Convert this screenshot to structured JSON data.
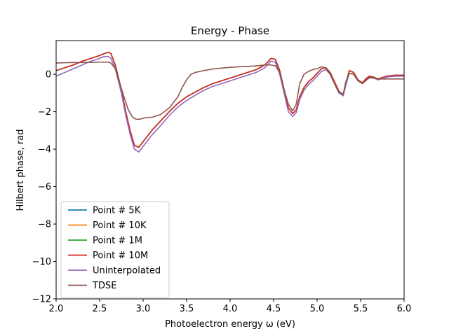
{
  "chart_data": {
    "type": "line",
    "title": "Energy - Phase",
    "xlabel": "Photoelectron energy ω (eV)",
    "ylabel": "Hilbert phase, rad",
    "xlim": [
      2.0,
      6.0
    ],
    "ylim": [
      -12,
      1.8
    ],
    "xticks": [
      2.0,
      2.5,
      3.0,
      3.5,
      4.0,
      4.5,
      5.0,
      5.5,
      6.0
    ],
    "xtick_labels": [
      "2.0",
      "2.5",
      "3.0",
      "3.5",
      "4.0",
      "4.5",
      "5.0",
      "5.5",
      "6.0"
    ],
    "yticks": [
      0,
      -2,
      -4,
      -6,
      -8,
      -10,
      -12
    ],
    "ytick_labels": [
      "0",
      "−2",
      "−4",
      "−6",
      "−8",
      "−10",
      "−12"
    ],
    "grid": false,
    "legend_position": "lower-left",
    "series": [
      {
        "name": "Point # 5K",
        "color": "#1f77b4",
        "x": [
          2.0,
          2.1,
          2.2,
          2.3,
          2.4,
          2.5,
          2.55,
          2.6,
          2.63,
          2.68,
          2.75,
          2.8,
          2.85,
          2.9,
          2.95,
          3.0,
          3.1,
          3.2,
          3.3,
          3.4,
          3.5,
          3.6,
          3.7,
          3.8,
          3.9,
          4.0,
          4.1,
          4.2,
          4.3,
          4.4,
          4.47,
          4.52,
          4.57,
          4.62,
          4.67,
          4.72,
          4.76,
          4.8,
          4.85,
          4.9,
          4.95,
          5.0,
          5.05,
          5.1,
          5.15,
          5.2,
          5.25,
          5.3,
          5.33,
          5.37,
          5.42,
          5.47,
          5.52,
          5.57,
          5.6,
          5.65,
          5.7,
          5.8,
          5.9,
          6.0
        ],
        "y": [
          0.2,
          0.35,
          0.5,
          0.7,
          0.85,
          1.0,
          1.1,
          1.18,
          1.1,
          0.5,
          -0.8,
          -2.0,
          -3.0,
          -3.8,
          -3.9,
          -3.6,
          -3.0,
          -2.5,
          -2.0,
          -1.55,
          -1.2,
          -0.95,
          -0.7,
          -0.5,
          -0.35,
          -0.2,
          -0.05,
          0.1,
          0.25,
          0.5,
          0.85,
          0.8,
          0.2,
          -0.8,
          -1.8,
          -2.1,
          -1.9,
          -1.2,
          -0.7,
          -0.4,
          -0.2,
          0.05,
          0.3,
          0.35,
          0.1,
          -0.4,
          -0.9,
          -1.1,
          -0.5,
          0.2,
          0.1,
          -0.3,
          -0.45,
          -0.2,
          -0.1,
          -0.15,
          -0.25,
          -0.1,
          -0.05,
          -0.05
        ]
      },
      {
        "name": "Point # 10K",
        "color": "#ff7f0e",
        "x": [
          2.0,
          2.1,
          2.2,
          2.3,
          2.4,
          2.5,
          2.55,
          2.6,
          2.63,
          2.68,
          2.75,
          2.8,
          2.85,
          2.9,
          2.95,
          3.0,
          3.1,
          3.2,
          3.3,
          3.4,
          3.5,
          3.6,
          3.7,
          3.8,
          3.9,
          4.0,
          4.1,
          4.2,
          4.3,
          4.4,
          4.47,
          4.52,
          4.57,
          4.62,
          4.67,
          4.72,
          4.76,
          4.8,
          4.85,
          4.9,
          4.95,
          5.0,
          5.05,
          5.1,
          5.15,
          5.2,
          5.25,
          5.3,
          5.33,
          5.37,
          5.42,
          5.47,
          5.52,
          5.57,
          5.6,
          5.65,
          5.7,
          5.8,
          5.9,
          6.0
        ],
        "y": [
          0.2,
          0.35,
          0.5,
          0.7,
          0.85,
          1.0,
          1.1,
          1.18,
          1.1,
          0.5,
          -0.8,
          -2.0,
          -3.0,
          -3.8,
          -3.9,
          -3.6,
          -3.0,
          -2.5,
          -2.0,
          -1.55,
          -1.2,
          -0.95,
          -0.7,
          -0.5,
          -0.35,
          -0.2,
          -0.05,
          0.1,
          0.25,
          0.5,
          0.85,
          0.8,
          0.2,
          -0.8,
          -1.8,
          -2.1,
          -1.9,
          -1.2,
          -0.7,
          -0.4,
          -0.2,
          0.05,
          0.3,
          0.35,
          0.1,
          -0.4,
          -0.9,
          -1.1,
          -0.5,
          0.2,
          0.1,
          -0.3,
          -0.45,
          -0.2,
          -0.1,
          -0.15,
          -0.25,
          -0.1,
          -0.05,
          -0.05
        ]
      },
      {
        "name": "Point # 1M",
        "color": "#2ca02c",
        "x": [
          2.0,
          2.1,
          2.2,
          2.3,
          2.4,
          2.5,
          2.55,
          2.6,
          2.63,
          2.68,
          2.75,
          2.8,
          2.85,
          2.9,
          2.95,
          3.0,
          3.1,
          3.2,
          3.3,
          3.4,
          3.5,
          3.6,
          3.7,
          3.8,
          3.9,
          4.0,
          4.1,
          4.2,
          4.3,
          4.4,
          4.47,
          4.52,
          4.57,
          4.62,
          4.67,
          4.72,
          4.76,
          4.8,
          4.85,
          4.9,
          4.95,
          5.0,
          5.05,
          5.1,
          5.15,
          5.2,
          5.25,
          5.3,
          5.33,
          5.37,
          5.42,
          5.47,
          5.52,
          5.57,
          5.6,
          5.65,
          5.7,
          5.8,
          5.9,
          6.0
        ],
        "y": [
          0.2,
          0.35,
          0.5,
          0.7,
          0.85,
          1.0,
          1.1,
          1.18,
          1.1,
          0.5,
          -0.8,
          -2.0,
          -3.0,
          -3.8,
          -3.9,
          -3.6,
          -3.0,
          -2.5,
          -2.0,
          -1.55,
          -1.2,
          -0.95,
          -0.7,
          -0.5,
          -0.35,
          -0.2,
          -0.05,
          0.1,
          0.25,
          0.5,
          0.85,
          0.8,
          0.2,
          -0.8,
          -1.8,
          -2.1,
          -1.9,
          -1.2,
          -0.7,
          -0.4,
          -0.2,
          0.05,
          0.3,
          0.35,
          0.1,
          -0.4,
          -0.9,
          -1.1,
          -0.5,
          0.2,
          0.1,
          -0.3,
          -0.45,
          -0.2,
          -0.1,
          -0.15,
          -0.25,
          -0.1,
          -0.05,
          -0.05
        ]
      },
      {
        "name": "Point # 10M",
        "color": "#d62728",
        "x": [
          2.0,
          2.1,
          2.2,
          2.3,
          2.4,
          2.5,
          2.55,
          2.6,
          2.63,
          2.68,
          2.75,
          2.8,
          2.85,
          2.9,
          2.95,
          3.0,
          3.1,
          3.2,
          3.3,
          3.4,
          3.5,
          3.6,
          3.7,
          3.8,
          3.9,
          4.0,
          4.1,
          4.2,
          4.3,
          4.4,
          4.47,
          4.52,
          4.57,
          4.62,
          4.67,
          4.72,
          4.76,
          4.8,
          4.85,
          4.9,
          4.95,
          5.0,
          5.05,
          5.1,
          5.15,
          5.2,
          5.25,
          5.3,
          5.33,
          5.37,
          5.42,
          5.47,
          5.52,
          5.57,
          5.6,
          5.65,
          5.7,
          5.8,
          5.9,
          6.0
        ],
        "y": [
          0.2,
          0.35,
          0.5,
          0.7,
          0.85,
          1.0,
          1.1,
          1.18,
          1.1,
          0.5,
          -0.8,
          -2.0,
          -3.0,
          -3.8,
          -3.9,
          -3.6,
          -3.0,
          -2.5,
          -2.0,
          -1.55,
          -1.2,
          -0.95,
          -0.7,
          -0.5,
          -0.35,
          -0.2,
          -0.05,
          0.1,
          0.25,
          0.5,
          0.85,
          0.8,
          0.2,
          -0.8,
          -1.8,
          -2.1,
          -1.9,
          -1.2,
          -0.7,
          -0.4,
          -0.2,
          0.05,
          0.3,
          0.35,
          0.1,
          -0.4,
          -0.9,
          -1.1,
          -0.5,
          0.2,
          0.1,
          -0.3,
          -0.45,
          -0.2,
          -0.1,
          -0.15,
          -0.25,
          -0.1,
          -0.05,
          -0.05
        ]
      },
      {
        "name": "Uninterpolated",
        "color": "#9467bd",
        "x": [
          2.0,
          2.1,
          2.2,
          2.3,
          2.4,
          2.5,
          2.55,
          2.6,
          2.63,
          2.68,
          2.75,
          2.8,
          2.85,
          2.9,
          2.95,
          3.0,
          3.1,
          3.2,
          3.3,
          3.4,
          3.5,
          3.6,
          3.7,
          3.8,
          3.9,
          4.0,
          4.1,
          4.2,
          4.3,
          4.4,
          4.47,
          4.52,
          4.57,
          4.62,
          4.67,
          4.72,
          4.76,
          4.8,
          4.85,
          4.9,
          4.95,
          5.0,
          5.05,
          5.1,
          5.15,
          5.2,
          5.25,
          5.3,
          5.33,
          5.37,
          5.42,
          5.47,
          5.52,
          5.57,
          5.6,
          5.65,
          5.7,
          5.8,
          5.9,
          6.0
        ],
        "y": [
          -0.1,
          0.1,
          0.3,
          0.5,
          0.7,
          0.85,
          0.95,
          0.95,
          0.85,
          0.3,
          -1.0,
          -2.2,
          -3.2,
          -4.0,
          -4.15,
          -3.85,
          -3.25,
          -2.75,
          -2.2,
          -1.75,
          -1.4,
          -1.12,
          -0.85,
          -0.65,
          -0.5,
          -0.35,
          -0.2,
          -0.05,
          0.1,
          0.35,
          0.7,
          0.65,
          0.0,
          -1.0,
          -2.0,
          -2.25,
          -2.05,
          -1.35,
          -0.85,
          -0.55,
          -0.35,
          -0.1,
          0.15,
          0.25,
          0.0,
          -0.5,
          -1.0,
          -1.15,
          -0.6,
          0.05,
          0.0,
          -0.35,
          -0.5,
          -0.3,
          -0.2,
          -0.2,
          -0.3,
          -0.15,
          -0.1,
          -0.1
        ]
      },
      {
        "name": "TDSE",
        "color": "#8c564b",
        "x": [
          2.0,
          2.1,
          2.2,
          2.3,
          2.4,
          2.5,
          2.55,
          2.6,
          2.63,
          2.68,
          2.72,
          2.78,
          2.83,
          2.88,
          2.92,
          2.96,
          3.0,
          3.05,
          3.1,
          3.2,
          3.3,
          3.4,
          3.45,
          3.5,
          3.55,
          3.6,
          3.7,
          3.8,
          3.9,
          4.0,
          4.1,
          4.2,
          4.3,
          4.4,
          4.47,
          4.52,
          4.57,
          4.62,
          4.67,
          4.72,
          4.76,
          4.8,
          4.85,
          4.9,
          4.95,
          5.0,
          5.05,
          5.1,
          5.15,
          5.2,
          5.25,
          5.3,
          5.33,
          5.37,
          5.42,
          5.47,
          5.52,
          5.57,
          5.6,
          5.65,
          5.7,
          5.8,
          5.9,
          6.0
        ],
        "y": [
          0.6,
          0.62,
          0.63,
          0.63,
          0.64,
          0.65,
          0.65,
          0.65,
          0.6,
          0.3,
          -0.3,
          -1.2,
          -1.9,
          -2.3,
          -2.4,
          -2.4,
          -2.35,
          -2.3,
          -2.3,
          -2.15,
          -1.8,
          -1.2,
          -0.7,
          -0.3,
          0.0,
          0.1,
          0.2,
          0.28,
          0.33,
          0.37,
          0.4,
          0.42,
          0.45,
          0.5,
          0.5,
          0.45,
          0.1,
          -0.8,
          -1.6,
          -1.95,
          -1.6,
          -0.5,
          0.0,
          0.15,
          0.25,
          0.3,
          0.4,
          0.35,
          0.0,
          -0.5,
          -0.95,
          -1.05,
          -0.4,
          0.05,
          0.0,
          -0.35,
          -0.5,
          -0.3,
          -0.15,
          -0.2,
          -0.25,
          -0.25,
          -0.25,
          -0.25
        ]
      }
    ]
  }
}
